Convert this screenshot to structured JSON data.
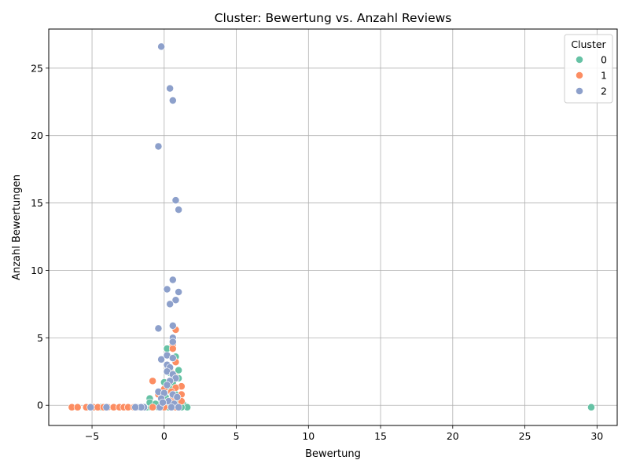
{
  "chart_data": {
    "type": "scatter",
    "title": "Cluster: Bewertung vs. Anzahl Reviews",
    "xlabel": "Bewertung",
    "ylabel": "Anzahl Bewertungen",
    "xlim": [
      -8.0,
      31.4
    ],
    "ylim": [
      -1.5,
      27.9
    ],
    "xticks": [
      -5,
      0,
      5,
      10,
      15,
      20,
      25,
      30
    ],
    "yticks": [
      0,
      5,
      10,
      15,
      20,
      25
    ],
    "grid": true,
    "legend": {
      "title": "Cluster",
      "placement": "top-right"
    },
    "series": [
      {
        "name": "0",
        "color": "#66c2a5",
        "points": [
          [
            29.6,
            -0.15
          ],
          [
            -4.4,
            -0.15
          ],
          [
            -1.7,
            -0.15
          ],
          [
            -1.2,
            -0.15
          ],
          [
            -0.9,
            -0.15
          ],
          [
            -1.0,
            0.5
          ],
          [
            -1.0,
            0.2
          ],
          [
            0.2,
            4.2
          ],
          [
            0.8,
            3.6
          ],
          [
            1.0,
            2.6
          ],
          [
            0.4,
            2.4
          ],
          [
            1.0,
            2.0
          ],
          [
            0.6,
            1.7
          ],
          [
            0.0,
            1.7
          ],
          [
            0.4,
            1.2
          ],
          [
            0.8,
            0.8
          ],
          [
            -0.2,
            0.3
          ],
          [
            0.5,
            0.4
          ],
          [
            1.3,
            0.1
          ],
          [
            1.6,
            -0.15
          ],
          [
            1.2,
            -0.15
          ],
          [
            0.3,
            -0.15
          ],
          [
            -0.4,
            -0.15
          ],
          [
            0.9,
            0.3
          ],
          [
            -0.6,
            0.1
          ],
          [
            0.1,
            0.6
          ]
        ]
      },
      {
        "name": "1",
        "color": "#fc8d62",
        "points": [
          [
            -6.4,
            -0.15
          ],
          [
            -6.0,
            -0.15
          ],
          [
            -5.4,
            -0.15
          ],
          [
            -4.9,
            -0.15
          ],
          [
            -4.6,
            -0.15
          ],
          [
            -4.2,
            -0.15
          ],
          [
            -3.9,
            -0.15
          ],
          [
            -3.5,
            -0.15
          ],
          [
            -3.1,
            -0.15
          ],
          [
            -2.8,
            -0.15
          ],
          [
            -2.5,
            -0.15
          ],
          [
            -2.1,
            -0.15
          ],
          [
            -0.8,
            1.8
          ],
          [
            0.8,
            5.6
          ],
          [
            0.6,
            4.5
          ],
          [
            0.6,
            4.2
          ],
          [
            0.8,
            3.2
          ],
          [
            0.4,
            2.6
          ],
          [
            0.7,
            2.2
          ],
          [
            1.2,
            1.4
          ],
          [
            0.8,
            1.3
          ],
          [
            0.0,
            1.2
          ],
          [
            -0.4,
            0.8
          ],
          [
            1.2,
            0.8
          ],
          [
            0.6,
            0.5
          ],
          [
            1.2,
            0.3
          ],
          [
            0.6,
            0.2
          ],
          [
            0.0,
            -0.15
          ],
          [
            -0.8,
            -0.15
          ],
          [
            0.8,
            -0.15
          ],
          [
            0.5,
            1.0
          ]
        ]
      },
      {
        "name": "2",
        "color": "#8da0cb",
        "points": [
          [
            -0.2,
            26.6
          ],
          [
            0.4,
            23.5
          ],
          [
            0.6,
            22.6
          ],
          [
            -0.4,
            19.2
          ],
          [
            0.8,
            15.2
          ],
          [
            1.0,
            14.5
          ],
          [
            0.6,
            9.3
          ],
          [
            0.2,
            8.6
          ],
          [
            1.0,
            8.4
          ],
          [
            0.8,
            7.8
          ],
          [
            0.4,
            7.5
          ],
          [
            0.6,
            5.9
          ],
          [
            -0.4,
            5.7
          ],
          [
            0.6,
            5.0
          ],
          [
            0.6,
            4.7
          ],
          [
            -0.2,
            3.4
          ],
          [
            0.2,
            3.7
          ],
          [
            0.6,
            3.5
          ],
          [
            0.2,
            3.0
          ],
          [
            0.4,
            2.8
          ],
          [
            0.2,
            2.5
          ],
          [
            0.6,
            2.3
          ],
          [
            0.8,
            2.0
          ],
          [
            0.4,
            1.8
          ],
          [
            0.2,
            1.5
          ],
          [
            -0.4,
            1.0
          ],
          [
            0.0,
            0.9
          ],
          [
            0.6,
            0.8
          ],
          [
            0.9,
            0.6
          ],
          [
            -0.2,
            0.5
          ],
          [
            0.3,
            0.3
          ],
          [
            0.7,
            0.1
          ],
          [
            -1.4,
            -0.15
          ],
          [
            -1.9,
            -0.15
          ],
          [
            -0.3,
            -0.15
          ],
          [
            1.0,
            -0.15
          ],
          [
            0.5,
            -0.15
          ],
          [
            -0.1,
            0.2
          ],
          [
            -1.6,
            -0.15
          ],
          [
            -2.0,
            -0.15
          ],
          [
            -5.1,
            -0.15
          ],
          [
            -4.0,
            -0.15
          ]
        ]
      }
    ]
  }
}
